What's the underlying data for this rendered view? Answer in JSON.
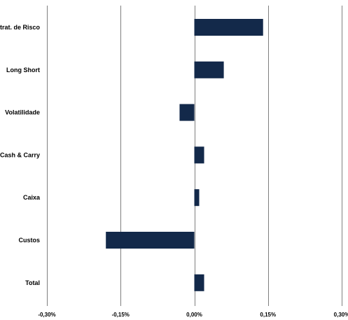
{
  "chart_data": {
    "type": "bar",
    "orientation": "horizontal",
    "categories": [
      "Estrat. de Risco",
      "Long Short",
      "Volatilidade",
      "Cash & Carry",
      "Caixa",
      "Custos",
      "Total"
    ],
    "values": [
      0.14,
      0.06,
      -0.03,
      0.02,
      0.01,
      -0.18,
      0.02
    ],
    "unit": "%",
    "xlim": [
      -0.3,
      0.3
    ],
    "xticks": [
      -0.3,
      -0.15,
      0.0,
      0.15,
      0.3
    ],
    "tick_labels": [
      "-0,30%",
      "-0,15%",
      "0,00%",
      "0,15%",
      "0,30%"
    ],
    "grid": "vertical",
    "legend": "none",
    "bar_color": "#13294a",
    "title": "",
    "xlabel": "",
    "ylabel": ""
  }
}
